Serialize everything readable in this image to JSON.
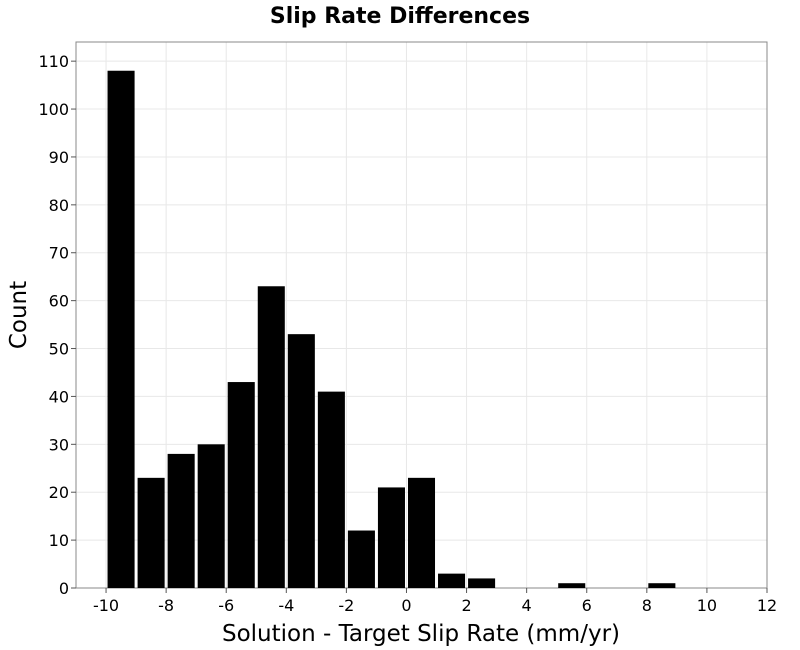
{
  "chart_data": {
    "type": "bar",
    "title": "Slip Rate Differences",
    "xlabel": "Solution - Target Slip Rate (mm/yr)",
    "ylabel": "Count",
    "xlim": [
      -11,
      12
    ],
    "ylim": [
      0,
      114
    ],
    "xticks": [
      -10,
      -8,
      -6,
      -4,
      -2,
      0,
      2,
      4,
      6,
      8,
      10,
      12
    ],
    "yticks": [
      0,
      10,
      20,
      30,
      40,
      50,
      60,
      70,
      80,
      90,
      100,
      110
    ],
    "bin_width": 1,
    "bins": [
      {
        "x": -10,
        "value": 108
      },
      {
        "x": -9,
        "value": 23
      },
      {
        "x": -8,
        "value": 28
      },
      {
        "x": -7,
        "value": 30
      },
      {
        "x": -6,
        "value": 43
      },
      {
        "x": -5,
        "value": 63
      },
      {
        "x": -4,
        "value": 53
      },
      {
        "x": -3,
        "value": 41
      },
      {
        "x": -2,
        "value": 12
      },
      {
        "x": -1,
        "value": 21
      },
      {
        "x": 0,
        "value": 23
      },
      {
        "x": 1,
        "value": 3
      },
      {
        "x": 2,
        "value": 2
      },
      {
        "x": 5,
        "value": 1
      },
      {
        "x": 8,
        "value": 1
      }
    ],
    "grid": true,
    "bar_color": "#000000"
  }
}
